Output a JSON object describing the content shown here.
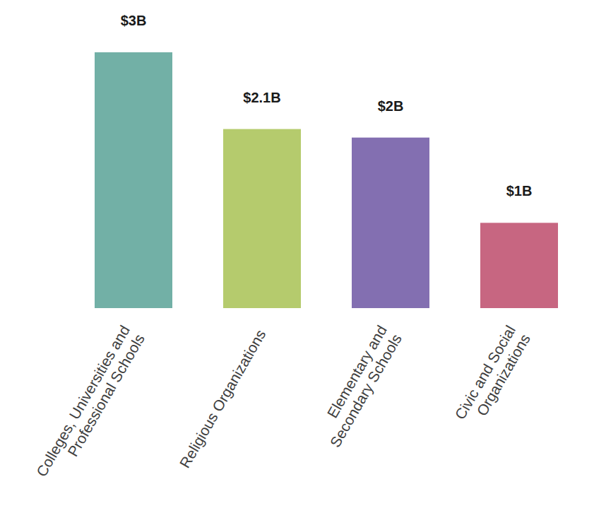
{
  "chart_data": {
    "type": "bar",
    "categories": [
      "Colleges, Universities and\nProfessional Schools",
      "Religious Organizations",
      "Elementary and\nSecondary Schools",
      "Civic and Social\nOrganizations"
    ],
    "values": [
      3,
      2.1,
      2,
      1
    ],
    "value_labels": [
      "$3B",
      "$2.1B",
      "$2B",
      "$1B"
    ],
    "colors": [
      "#72b0a6",
      "#b5cb6d",
      "#836fb1",
      "#c76681"
    ],
    "data_labels": true
  }
}
